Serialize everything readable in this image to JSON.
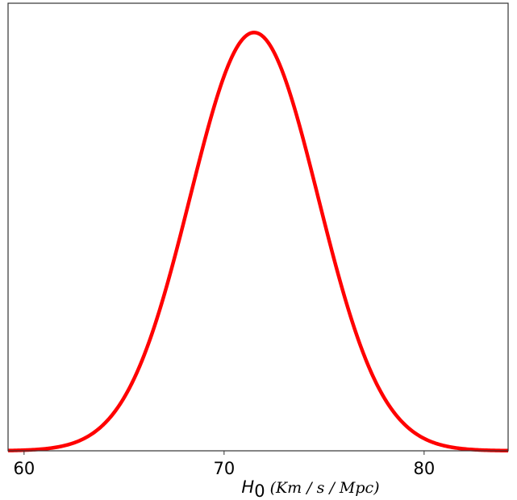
{
  "chart_data": {
    "type": "line",
    "title": "",
    "xlabel": {
      "symbol": "H",
      "subscript": "0",
      "units": "(Km / s / Mpc)"
    },
    "ylabel": "",
    "xlim": [
      59.2,
      84.2
    ],
    "ylim": [
      0,
      1.07
    ],
    "xticks": [
      60,
      70,
      80
    ],
    "xtick_labels": [
      "60",
      "70",
      "80"
    ],
    "yticks": [],
    "grid": false,
    "legend": "none",
    "series": [
      {
        "color": "#ff0000",
        "curve": "gaussian",
        "peak_x": 71.5,
        "peak_y": 1.0,
        "sigma": 3.2,
        "points": [
          [
            59.2,
            0.0006
          ],
          [
            60.0,
            0.0016
          ],
          [
            61.0,
            0.0046
          ],
          [
            62.0,
            0.0122
          ],
          [
            63.0,
            0.0294
          ],
          [
            64.0,
            0.0643
          ],
          [
            65.0,
            0.1271
          ],
          [
            66.0,
            0.2279
          ],
          [
            67.0,
            0.3727
          ],
          [
            68.0,
            0.5509
          ],
          [
            69.0,
            0.7376
          ],
          [
            70.0,
            0.8961
          ],
          [
            71.0,
            0.9881
          ],
          [
            71.5,
            1.0
          ],
          [
            72.0,
            0.9881
          ],
          [
            73.0,
            0.8961
          ],
          [
            74.0,
            0.7376
          ],
          [
            75.0,
            0.5509
          ],
          [
            76.0,
            0.3727
          ],
          [
            77.0,
            0.2279
          ],
          [
            78.0,
            0.1271
          ],
          [
            79.0,
            0.0643
          ],
          [
            80.0,
            0.0294
          ],
          [
            81.0,
            0.0122
          ],
          [
            82.0,
            0.0046
          ],
          [
            83.0,
            0.0016
          ],
          [
            84.2,
            0.0004
          ]
        ]
      }
    ]
  }
}
